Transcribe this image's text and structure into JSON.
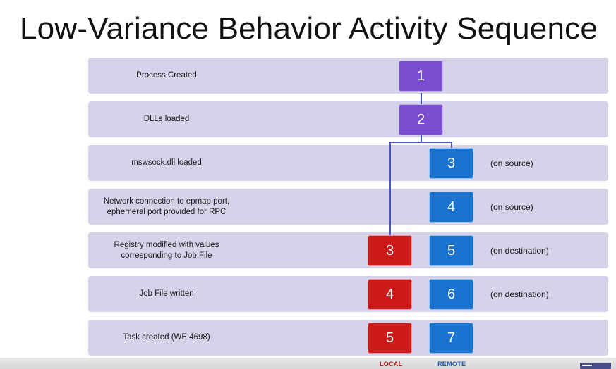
{
  "title": "Low-Variance Behavior Activity Sequence",
  "rows": [
    {
      "label": "Process Created",
      "note": "",
      "common": "1",
      "local": "",
      "remote": ""
    },
    {
      "label": "DLLs loaded",
      "note": "",
      "common": "2",
      "local": "",
      "remote": ""
    },
    {
      "label": "mswsock.dll loaded",
      "note": "(on source)",
      "common": "",
      "local": "",
      "remote": "3"
    },
    {
      "label": "Network connection to epmap port,\nephemeral port provided for RPC",
      "note": "(on source)",
      "common": "",
      "local": "",
      "remote": "4"
    },
    {
      "label": "Registry modified with values\ncorresponding to Job File",
      "note": "(on destination)",
      "common": "",
      "local": "3",
      "remote": "5"
    },
    {
      "label": "Job File written",
      "note": "(on destination)",
      "common": "",
      "local": "4",
      "remote": "6"
    },
    {
      "label": "Task created (WE 4698)",
      "note": "",
      "common": "",
      "local": "5",
      "remote": "7"
    }
  ],
  "columns": {
    "local_label": "LOCAL",
    "remote_label": "REMOTE"
  },
  "colors": {
    "common": "#7b4ccf",
    "remote": "#1a74cf",
    "local": "#cc1a1a",
    "row": "#d5d3ea"
  },
  "icons": {
    "corner": "presentation-logo-icon"
  }
}
